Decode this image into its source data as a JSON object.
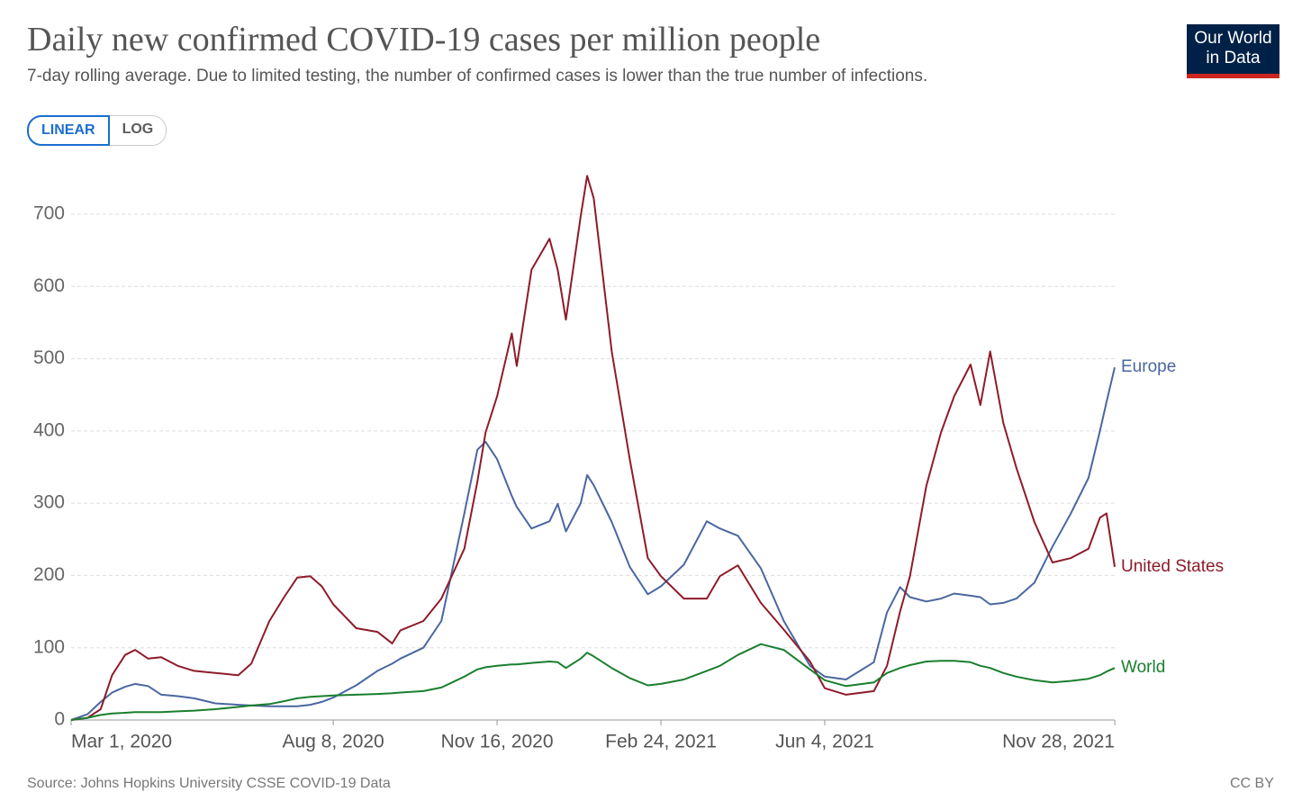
{
  "chart_data": {
    "type": "line",
    "title": "Daily new confirmed COVID-19 cases per million people",
    "subtitle": "7-day rolling average. Due to limited testing, the number of confirmed cases is lower than the true number of infections.",
    "scale_options": [
      "LINEAR",
      "LOG"
    ],
    "scale": "linear",
    "logo": [
      "Our World",
      "in Data"
    ],
    "source": "Source: Johns Hopkins University CSSE COVID-19 Data",
    "license": "CC BY",
    "grid": true,
    "x": [
      "2020-03-01",
      "2020-03-11",
      "2020-03-19",
      "2020-03-26",
      "2020-04-03",
      "2020-04-09",
      "2020-04-17",
      "2020-04-25",
      "2020-05-05",
      "2020-05-15",
      "2020-05-28",
      "2020-06-11",
      "2020-06-19",
      "2020-06-30",
      "2020-07-09",
      "2020-07-17",
      "2020-07-25",
      "2020-08-01",
      "2020-08-08",
      "2020-08-22",
      "2020-09-04",
      "2020-09-13",
      "2020-09-18",
      "2020-10-02",
      "2020-10-13",
      "2020-10-27",
      "2020-11-04",
      "2020-11-09",
      "2020-11-16",
      "2020-11-25",
      "2020-11-28",
      "2020-12-07",
      "2020-12-18",
      "2020-12-23",
      "2020-12-28",
      "2021-01-06",
      "2021-01-10",
      "2021-01-14",
      "2021-01-25",
      "2021-02-05",
      "2021-02-16",
      "2021-02-24",
      "2021-03-10",
      "2021-03-24",
      "2021-04-01",
      "2021-04-12",
      "2021-04-26",
      "2021-05-10",
      "2021-05-26",
      "2021-06-04",
      "2021-06-17",
      "2021-07-04",
      "2021-07-12",
      "2021-07-20",
      "2021-07-26",
      "2021-08-05",
      "2021-08-14",
      "2021-08-22",
      "2021-09-01",
      "2021-09-07",
      "2021-09-13",
      "2021-09-21",
      "2021-09-29",
      "2021-10-10",
      "2021-10-21",
      "2021-11-01",
      "2021-11-12",
      "2021-11-19",
      "2021-11-23",
      "2021-11-28"
    ],
    "xlim": [
      "2020-03-01",
      "2021-11-28"
    ],
    "xticks": [
      {
        "value": "2020-03-01",
        "label": "Mar 1, 2020"
      },
      {
        "value": "2020-08-08",
        "label": "Aug 8, 2020"
      },
      {
        "value": "2020-11-16",
        "label": "Nov 16, 2020"
      },
      {
        "value": "2021-02-24",
        "label": "Feb 24, 2021"
      },
      {
        "value": "2021-06-04",
        "label": "Jun 4, 2021"
      },
      {
        "value": "2021-11-28",
        "label": "Nov 28, 2021"
      }
    ],
    "ylim": [
      0,
      700
    ],
    "yticks": [
      0,
      100,
      200,
      300,
      400,
      500,
      600,
      700
    ],
    "series": [
      {
        "name": "Europe",
        "color": "#4a67a0",
        "values": [
          0,
          8,
          25,
          38,
          46,
          50,
          47,
          35,
          33,
          30,
          23,
          21,
          20,
          19,
          19,
          19,
          21,
          25,
          31,
          48,
          68,
          78,
          85,
          100,
          137,
          286,
          374,
          385,
          361,
          310,
          295,
          265,
          275,
          299,
          261,
          300,
          339,
          325,
          274,
          212,
          174,
          185,
          215,
          275,
          265,
          255,
          210,
          137,
          75,
          60,
          56,
          80,
          149,
          184,
          170,
          164,
          168,
          175,
          172,
          170,
          160,
          162,
          168,
          190,
          240,
          285,
          335,
          400,
          440,
          488
        ]
      },
      {
        "name": "United States",
        "color": "#8e1b2a",
        "values": [
          0,
          3,
          15,
          62,
          90,
          97,
          85,
          87,
          75,
          68,
          65,
          62,
          78,
          137,
          170,
          197,
          199,
          185,
          160,
          127,
          122,
          106,
          124,
          137,
          168,
          237,
          330,
          398,
          448,
          535,
          490,
          623,
          666,
          623,
          554,
          697,
          753,
          722,
          510,
          361,
          224,
          199,
          168,
          168,
          199,
          214,
          162,
          125,
          81,
          44,
          35,
          40,
          75,
          150,
          199,
          324,
          398,
          448,
          492,
          436,
          510,
          411,
          349,
          274,
          218,
          224,
          237,
          280,
          286,
          212
        ]
      },
      {
        "name": "World",
        "color": "#1a7f2e",
        "values": [
          0,
          3,
          7,
          9,
          10,
          11,
          11,
          11,
          12,
          13,
          15,
          18,
          20,
          22,
          26,
          30,
          32,
          33,
          34,
          35,
          36,
          37,
          38,
          40,
          45,
          60,
          70,
          73,
          75,
          77,
          77,
          79,
          81,
          80,
          72,
          85,
          93,
          88,
          72,
          58,
          48,
          50,
          56,
          68,
          75,
          90,
          105,
          97,
          70,
          55,
          47,
          52,
          65,
          72,
          76,
          81,
          82,
          82,
          80,
          75,
          72,
          65,
          60,
          55,
          52,
          54,
          57,
          62,
          67,
          72
        ]
      }
    ]
  }
}
